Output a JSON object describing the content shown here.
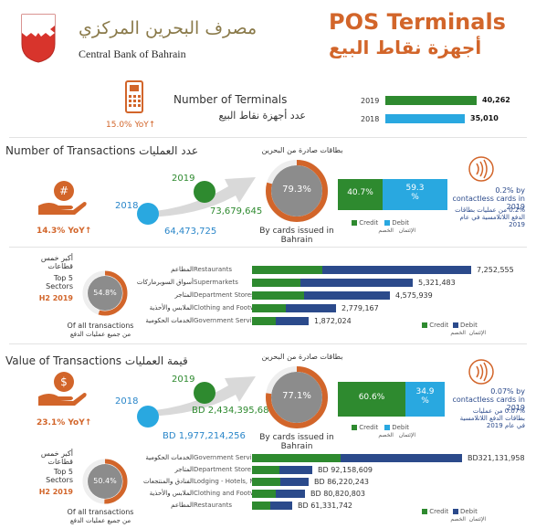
{
  "header": {
    "bank_name_ar": "مصرف البحرين المركزي",
    "bank_name_en": "Central Bank of Bahrain",
    "title_en": "POS Terminals",
    "title_ar": "أجهزة نقاط البيع"
  },
  "terminals": {
    "label_en": "Number of Terminals",
    "label_ar": "عدد أجهزة نقاط البيع",
    "yoy": "15.0% YoY↑",
    "rows": [
      {
        "year": "2019",
        "value": "40,262",
        "raw": 40262,
        "color": "#2e8a2f"
      },
      {
        "year": "2018",
        "value": "35,010",
        "raw": 35010,
        "color": "#29a8e0"
      }
    ]
  },
  "transactions": {
    "title_en": "Number of Transactions",
    "title_ar": "عدد العمليات",
    "yoy": "14.3% YoY↑",
    "year_2019": "2019",
    "value_2019": "73,679,645",
    "year_2018": "2018",
    "value_2018": "64,473,725",
    "cards_ar": "بطاقات صادرة من البحرين",
    "pct_bahrain": "79.3%",
    "pct_bahrain_value": 79.3,
    "cards_label": "By cards issued in Bahrain",
    "credit_pct": "40.7%",
    "credit_value": 40.7,
    "debit_pct": "59.3 %",
    "debit_value": 59.3,
    "credit_en": "Credit",
    "credit_ar": "الإئتمان",
    "debit_en": "Debit",
    "debit_ar": "الخصم",
    "contactless_en": "0.2% by contactless cards in 2019",
    "contactless_ar": "0.2% من عمليات بطاقات الدفع اللاتلامسية في عام 2019",
    "sectors_ar": "أكبر خمس قطاعات",
    "sectors_en": "Top 5 Sectors",
    "period": "H2 2019",
    "sectors_pct": "54.8%",
    "sectors_pct_value": 54.8,
    "sectors_note_en": "Of all transactions",
    "sectors_note_ar": "من جميع عمليات الدفع",
    "sectors": [
      {
        "en": "Restaurants",
        "ar": "المطاعم",
        "value": "7,252,555",
        "raw": 7252555,
        "credit_share": 0.32
      },
      {
        "en": "Supermarkets",
        "ar": "أسواق السوبرماركات",
        "value": "5,321,483",
        "raw": 5321483,
        "credit_share": 0.3
      },
      {
        "en": "Department Stores",
        "ar": "المتاجر",
        "value": "4,575,939",
        "raw": 4575939,
        "credit_share": 0.38
      },
      {
        "en": "Clothing and Footwear",
        "ar": "الملابس والأحذية",
        "value": "2,779,167",
        "raw": 2779167,
        "credit_share": 0.4
      },
      {
        "en": "Government Services",
        "ar": "الخدمات الحكومية",
        "value": "1,872,024",
        "raw": 1872024,
        "credit_share": 0.42
      }
    ]
  },
  "value": {
    "title_en": "Value of Transactions",
    "title_ar": "قيمة العمليات",
    "yoy": "23.1% YoY↑",
    "year_2019": "2019",
    "value_2019": "BD 2,434,395,681",
    "year_2018": "2018",
    "value_2018": "BD 1,977,214,256",
    "cards_ar": "بطاقات صادرة من البحرين",
    "pct_bahrain": "77.1%",
    "pct_bahrain_value": 77.1,
    "cards_label": "By cards issued in Bahrain",
    "credit_pct": "60.6%",
    "credit_value": 60.6,
    "debit_pct": "34.9 %",
    "debit_value": 34.9,
    "credit_en": "Credit",
    "credit_ar": "الإئتمان",
    "debit_en": "Debit",
    "debit_ar": "الخصم",
    "contactless_en": "0.07% by contactless cards in 2019",
    "contactless_ar": "0.07% من عمليات بطاقات الدفع اللاتلامسية في عام 2019",
    "sectors_ar": "أكبر خمس قطاعات",
    "sectors_en": "Top 5 Sectors",
    "period": "H2 2019",
    "sectors_pct": "50.4%",
    "sectors_pct_value": 50.4,
    "sectors_note_en": "Of all transactions",
    "sectors_note_ar": "من جميع عمليات الدفع",
    "sectors": [
      {
        "en": "Government Services",
        "ar": "الخدمات الحكومية",
        "value": "BD321,131,958",
        "raw": 321131958,
        "credit_share": 0.42
      },
      {
        "en": "Department Store",
        "ar": "المتاجر",
        "value": "BD 92,158,609",
        "raw": 92158609,
        "credit_share": 0.45
      },
      {
        "en": "Lodging - Hotels, Motels, Resorts",
        "ar": "الفنادق والمنتجعات",
        "value": "BD 86,220,243",
        "raw": 86220243,
        "credit_share": 0.5
      },
      {
        "en": "Clothing and Footwear",
        "ar": "الملابس والأحذية",
        "value": "BD 80,820,803",
        "raw": 80820803,
        "credit_share": 0.45
      },
      {
        "en": "Restaurants",
        "ar": "المطاعم",
        "value": "BD 61,331,742",
        "raw": 61331742,
        "credit_share": 0.45
      }
    ]
  },
  "colors": {
    "orange": "#d2652a",
    "green": "#2e8a2f",
    "blue": "#29a8e0",
    "navy": "#2b4a8b",
    "grey": "#8a8a8a"
  },
  "icons": {
    "emblem": "bahrain-emblem-icon",
    "terminal": "pos-terminal-icon",
    "hand_hash": "hand-hash-icon",
    "hand_dollar": "hand-dollar-icon",
    "contactless": "contactless-icon",
    "arrow": "growth-arrow-icon"
  }
}
